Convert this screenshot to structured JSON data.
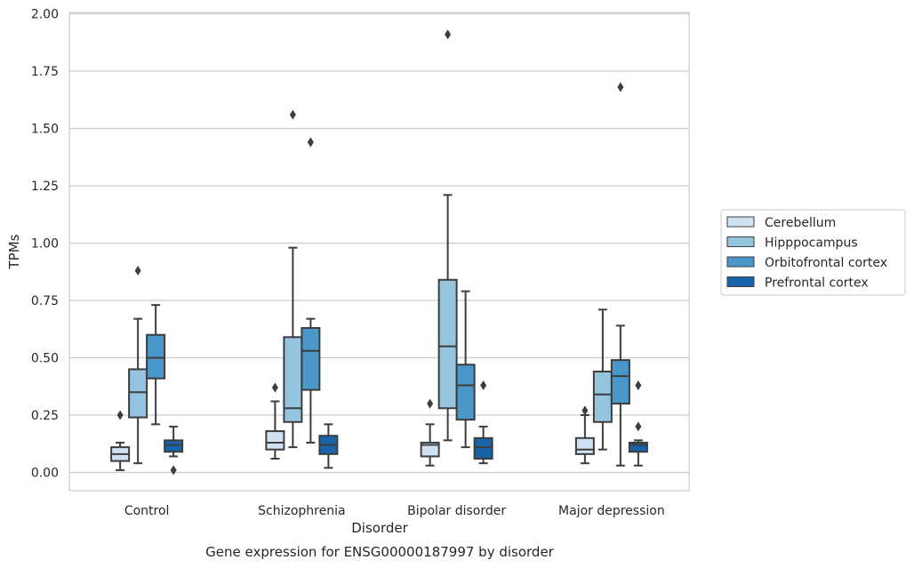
{
  "chart_data": {
    "type": "box",
    "caption": "Gene expression for ENSG00000187997 by disorder",
    "xlabel": "Disorder",
    "ylabel": "TPMs",
    "ylim": [
      -0.08,
      2.0
    ],
    "yticks": [
      "0.00",
      "0.25",
      "0.50",
      "0.75",
      "1.00",
      "1.25",
      "1.50",
      "1.75",
      "2.00"
    ],
    "grid": "horizontal",
    "legend_position": "right",
    "categories": [
      "Control",
      "Schizophrenia",
      "Bipolar disorder",
      "Major depression"
    ],
    "series": [
      {
        "name": "Cerebellum",
        "color": "#d0e1f2",
        "boxes": [
          {
            "whislo": 0.01,
            "q1": 0.05,
            "med": 0.08,
            "q3": 0.11,
            "whishi": 0.13,
            "fliers": [
              0.25
            ]
          },
          {
            "whislo": 0.06,
            "q1": 0.1,
            "med": 0.13,
            "q3": 0.18,
            "whishi": 0.31,
            "fliers": [
              0.37
            ]
          },
          {
            "whislo": 0.03,
            "q1": 0.07,
            "med": 0.12,
            "q3": 0.13,
            "whishi": 0.21,
            "fliers": [
              0.3
            ]
          },
          {
            "whislo": 0.04,
            "q1": 0.08,
            "med": 0.1,
            "q3": 0.15,
            "whishi": 0.25,
            "fliers": [
              0.27
            ]
          }
        ]
      },
      {
        "name": "Hipppocampus",
        "color": "#94c4df",
        "boxes": [
          {
            "whislo": 0.04,
            "q1": 0.24,
            "med": 0.35,
            "q3": 0.45,
            "whishi": 0.67,
            "fliers": [
              0.88
            ]
          },
          {
            "whislo": 0.11,
            "q1": 0.22,
            "med": 0.28,
            "q3": 0.59,
            "whishi": 0.98,
            "fliers": [
              1.56
            ]
          },
          {
            "whislo": 0.14,
            "q1": 0.28,
            "med": 0.55,
            "q3": 0.84,
            "whishi": 1.21,
            "fliers": [
              1.91
            ]
          },
          {
            "whislo": 0.1,
            "q1": 0.22,
            "med": 0.34,
            "q3": 0.44,
            "whishi": 0.71,
            "fliers": []
          }
        ]
      },
      {
        "name": "Orbitofrontal cortex",
        "color": "#4a98c9",
        "boxes": [
          {
            "whislo": 0.21,
            "q1": 0.41,
            "med": 0.5,
            "q3": 0.6,
            "whishi": 0.73,
            "fliers": []
          },
          {
            "whislo": 0.13,
            "q1": 0.36,
            "med": 0.53,
            "q3": 0.63,
            "whishi": 0.67,
            "fliers": [
              1.44
            ]
          },
          {
            "whislo": 0.11,
            "q1": 0.23,
            "med": 0.38,
            "q3": 0.47,
            "whishi": 0.79,
            "fliers": []
          },
          {
            "whislo": 0.03,
            "q1": 0.3,
            "med": 0.42,
            "q3": 0.49,
            "whishi": 0.64,
            "fliers": [
              1.68
            ]
          }
        ]
      },
      {
        "name": "Prefrontal cortex",
        "color": "#1764ab",
        "boxes": [
          {
            "whislo": 0.07,
            "q1": 0.09,
            "med": 0.12,
            "q3": 0.14,
            "whishi": 0.2,
            "fliers": [
              0.01
            ]
          },
          {
            "whislo": 0.02,
            "q1": 0.08,
            "med": 0.12,
            "q3": 0.16,
            "whishi": 0.21,
            "fliers": []
          },
          {
            "whislo": 0.04,
            "q1": 0.06,
            "med": 0.11,
            "q3": 0.15,
            "whishi": 0.2,
            "fliers": [
              0.38
            ]
          },
          {
            "whislo": 0.03,
            "q1": 0.09,
            "med": 0.12,
            "q3": 0.13,
            "whishi": 0.14,
            "fliers": [
              0.38,
              0.2
            ]
          }
        ]
      }
    ]
  }
}
